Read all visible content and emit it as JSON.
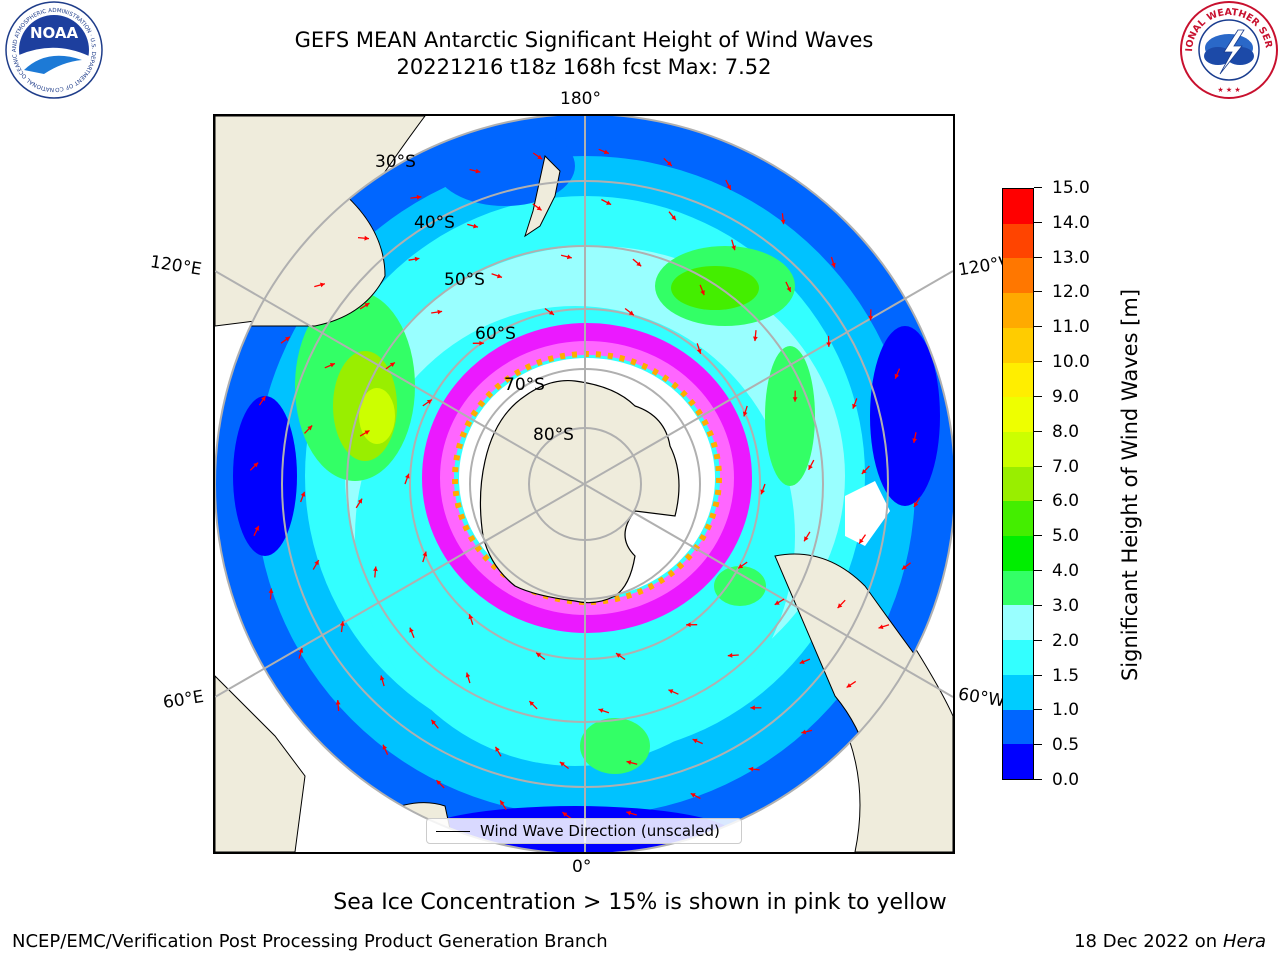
{
  "header": {
    "title_line1": "GEFS MEAN Antarctic Significant Height of Wind Waves",
    "title_line2": "20221216 t18z 168h fcst   Max: 7.52"
  },
  "logos": {
    "noaa_text": "NOAA",
    "noaa_ring_text": "NATIONAL OCEANIC AND ATMOSPHERIC ADMINISTRATION · U.S. DEPARTMENT OF COMMERCE",
    "nws_ring_text": "NATIONAL WEATHER SERVICE"
  },
  "map": {
    "projection": "south-polar-stereographic",
    "longitude_labels": {
      "top": "180°",
      "bottom": "0°",
      "left_upper": "120°E",
      "right_upper": "120°W",
      "left_lower": "60°E",
      "right_lower": "60°W"
    },
    "latitude_labels": [
      "30°S",
      "40°S",
      "50°S",
      "60°S",
      "70°S",
      "80°S"
    ],
    "arrow_color": "#ff0000",
    "land_color": "#efecdc",
    "ice_colors": [
      "#ff00ff",
      "#ff66ff",
      "#ffaa00",
      "#ffff88"
    ]
  },
  "legend": {
    "label": "Wind Wave Direction (unscaled)"
  },
  "colorbar": {
    "title": "Significant Height of Wind Waves [m]",
    "ticks": [
      "0.0",
      "0.5",
      "1.0",
      "1.5",
      "2.0",
      "3.0",
      "4.0",
      "5.0",
      "6.0",
      "7.0",
      "8.0",
      "9.0",
      "10.0",
      "11.0",
      "12.0",
      "13.0",
      "14.0",
      "15.0"
    ],
    "colors": [
      "#0000ff",
      "#0066ff",
      "#00ccff",
      "#33ffff",
      "#99ffff",
      "#33ff66",
      "#00ee00",
      "#44ee00",
      "#99ee00",
      "#ccff00",
      "#eeff00",
      "#ffee00",
      "#ffcc00",
      "#ffaa00",
      "#ff7700",
      "#ff4400",
      "#ff0000"
    ]
  },
  "footer": {
    "note": "Sea Ice Concentration > 15% is shown in pink to yellow",
    "credit": "NCEP/EMC/Verification Post Processing Product Generation Branch",
    "date_prefix": "18 Dec 2022 on",
    "machine": "Hera"
  }
}
